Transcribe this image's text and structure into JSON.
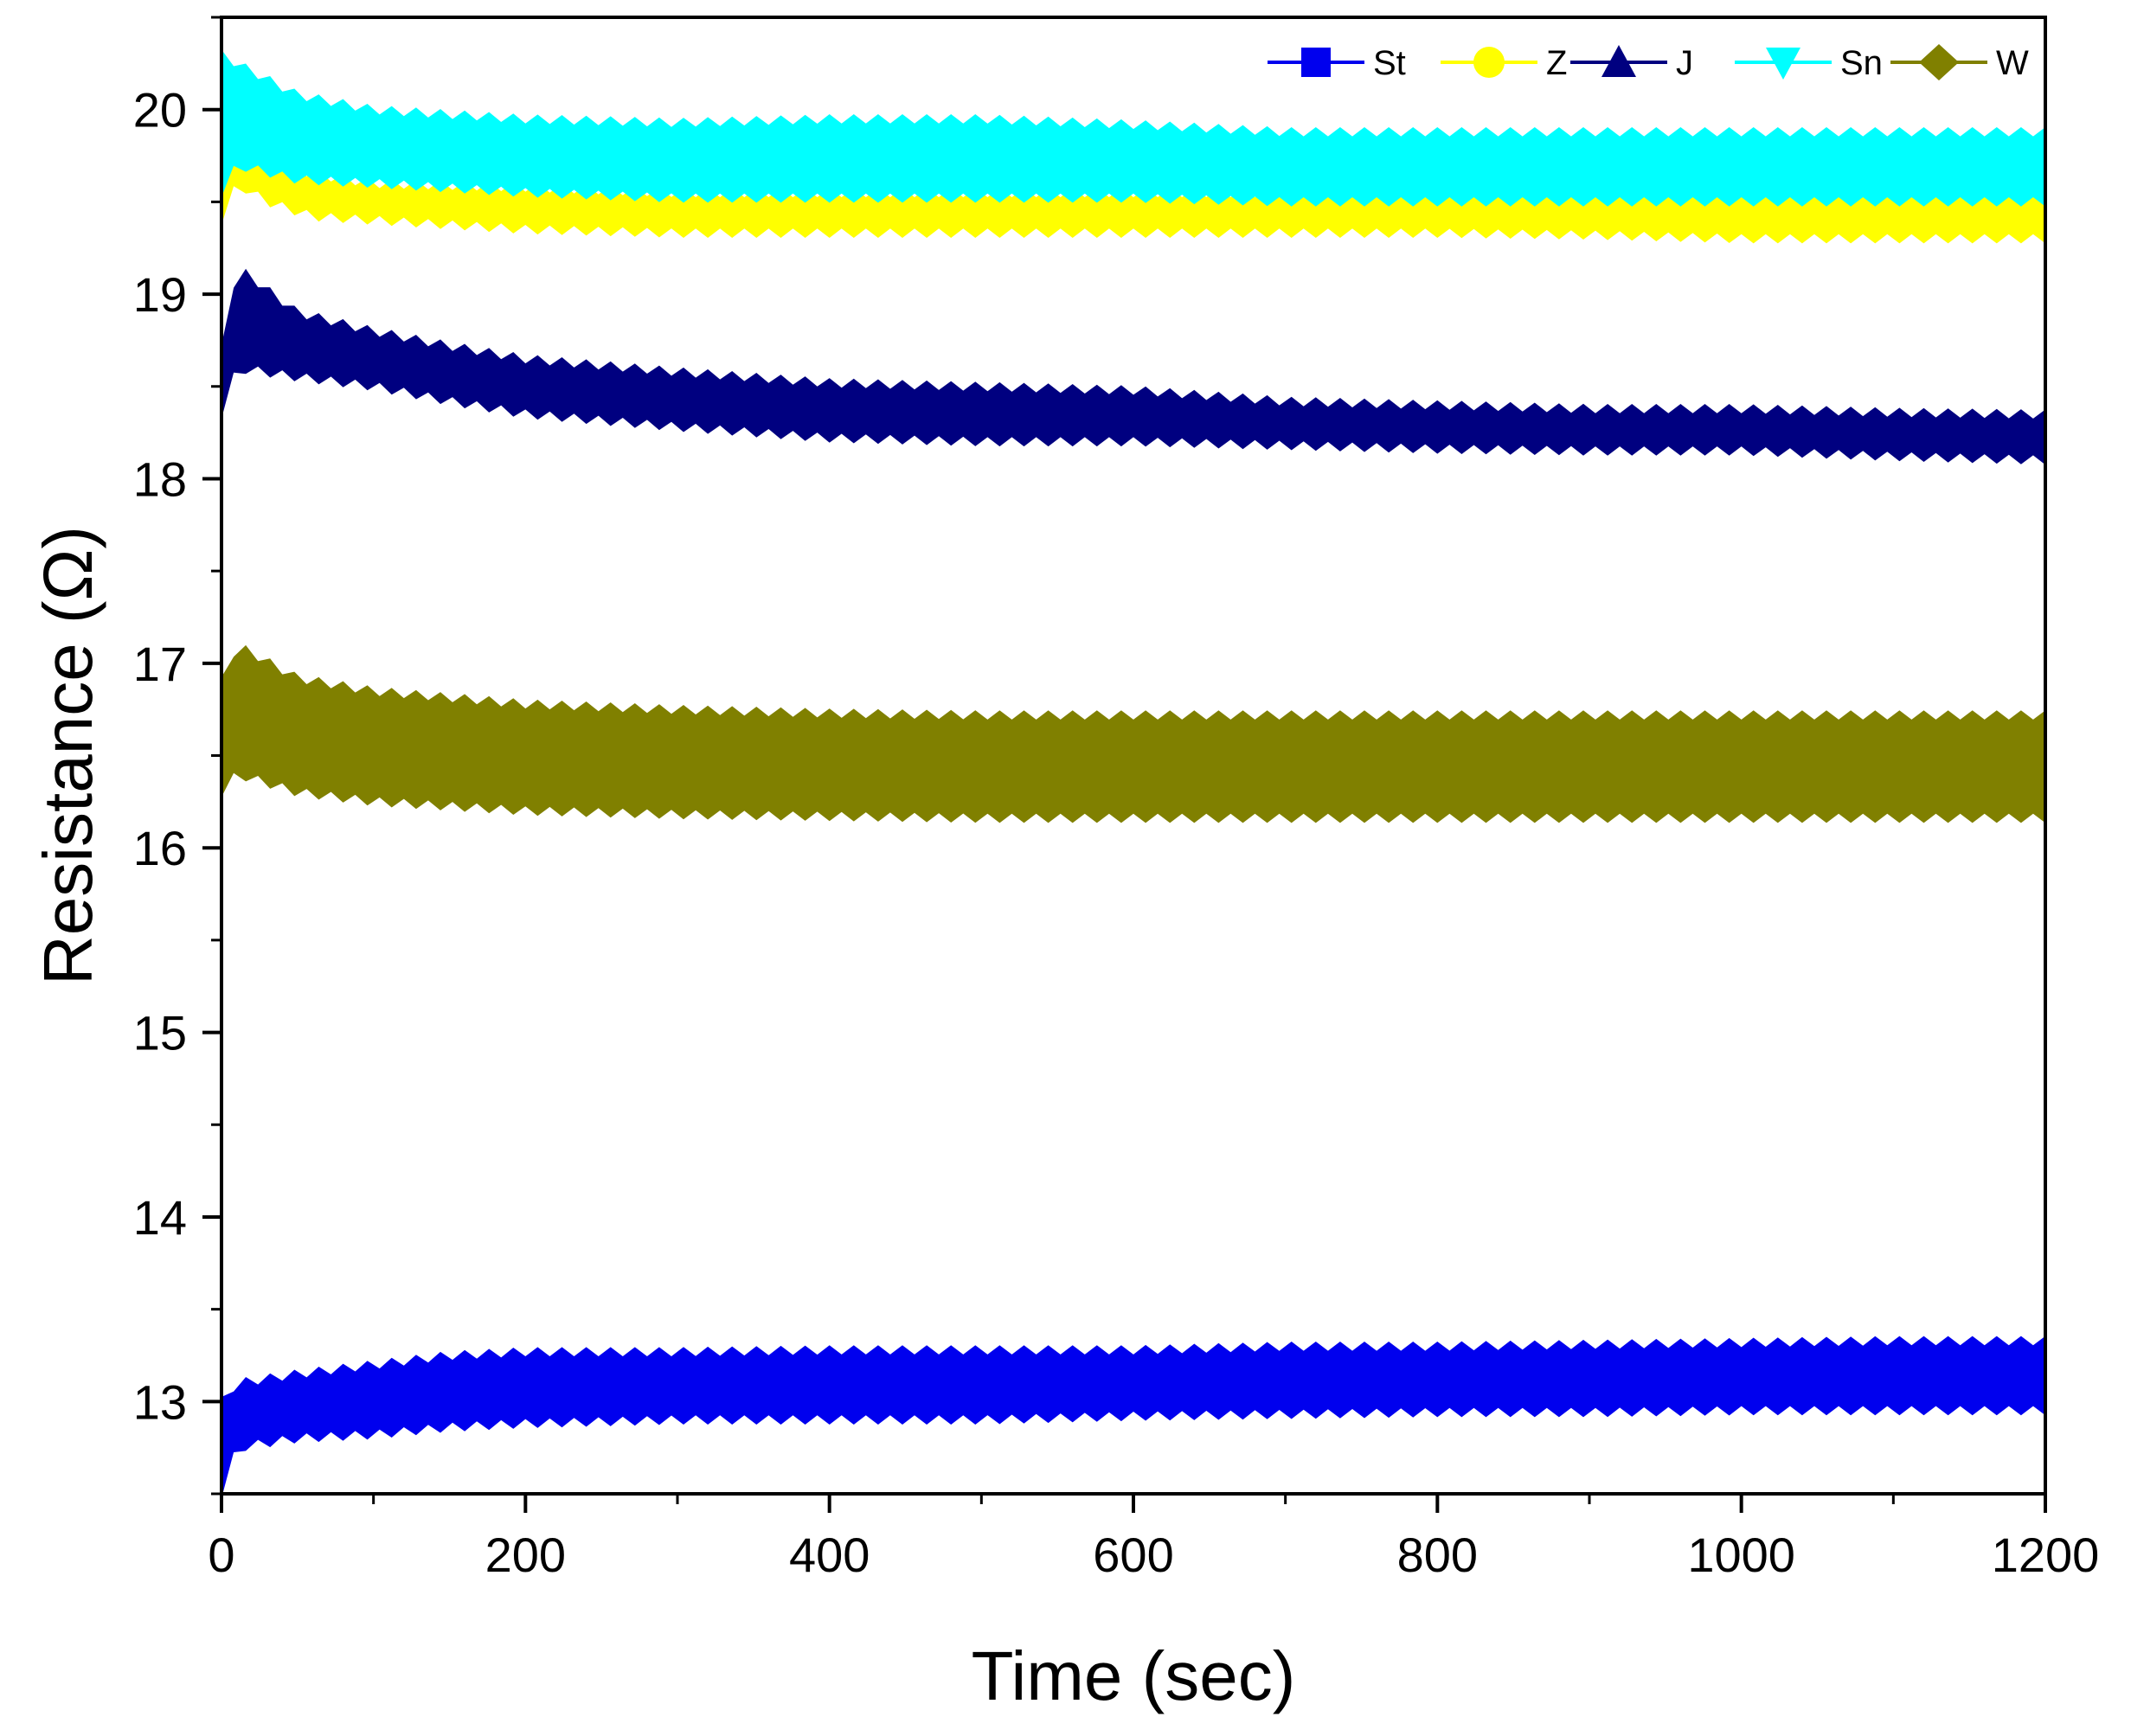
{
  "chart_data": {
    "type": "line",
    "title": "",
    "xlabel": "Time (sec)",
    "ylabel": "Resistance (Ω)",
    "xlim": [
      0,
      1200
    ],
    "ylim": [
      12.5,
      20.5
    ],
    "xticks": [
      0,
      200,
      400,
      600,
      800,
      1000,
      1200
    ],
    "yticks": [
      13,
      14,
      15,
      16,
      17,
      18,
      19,
      20
    ],
    "grid": false,
    "legend": {
      "placement": "top-right",
      "orientation": "horizontal"
    },
    "series": [
      {
        "name": "St",
        "color": "#0000ee",
        "marker": "square",
        "x": [
          0,
          10,
          50,
          100,
          150,
          200,
          300,
          400,
          500,
          600,
          700,
          800,
          900,
          1000,
          1100,
          1200
        ],
        "lower": [
          12.5,
          12.75,
          12.8,
          12.82,
          12.86,
          12.88,
          12.9,
          12.9,
          12.9,
          12.92,
          12.93,
          12.94,
          12.94,
          12.95,
          12.95,
          12.95
        ],
        "upper": [
          13.0,
          13.1,
          13.15,
          13.2,
          13.25,
          13.27,
          13.27,
          13.28,
          13.28,
          13.28,
          13.3,
          13.3,
          13.31,
          13.32,
          13.33,
          13.33
        ]
      },
      {
        "name": "Z",
        "color": "#ffff00",
        "marker": "circle",
        "x": [
          0,
          10,
          30,
          60,
          100,
          200,
          300,
          400,
          500,
          600,
          700,
          800,
          900,
          1000,
          1100,
          1200
        ],
        "lower": [
          19.4,
          19.6,
          19.5,
          19.42,
          19.4,
          19.35,
          19.33,
          19.33,
          19.33,
          19.33,
          19.33,
          19.33,
          19.32,
          19.3,
          19.3,
          19.3
        ],
        "upper": [
          20.2,
          20.0,
          19.75,
          19.65,
          19.6,
          19.58,
          19.55,
          19.55,
          19.55,
          19.55,
          19.55,
          19.55,
          19.55,
          19.55,
          19.55,
          19.55
        ]
      },
      {
        "name": "J",
        "color": "#000080",
        "marker": "triangle-up",
        "x": [
          0,
          10,
          50,
          100,
          150,
          200,
          300,
          400,
          500,
          600,
          700,
          800,
          900,
          1000,
          1100,
          1200
        ],
        "lower": [
          18.35,
          18.6,
          18.55,
          18.5,
          18.42,
          18.35,
          18.28,
          18.22,
          18.2,
          18.2,
          18.18,
          18.16,
          18.15,
          18.15,
          18.12,
          18.1
        ],
        "upper": [
          18.7,
          19.15,
          18.9,
          18.8,
          18.72,
          18.65,
          18.58,
          18.52,
          18.5,
          18.48,
          18.42,
          18.4,
          18.38,
          18.38,
          18.36,
          18.35
        ]
      },
      {
        "name": "Sn",
        "color": "#00ffff",
        "marker": "triangle-down",
        "x": [
          0,
          10,
          50,
          100,
          200,
          300,
          400,
          500,
          600,
          700,
          800,
          900,
          1000,
          1100,
          1200
        ],
        "lower": [
          19.55,
          19.7,
          19.62,
          19.6,
          19.55,
          19.52,
          19.52,
          19.52,
          19.52,
          19.5,
          19.5,
          19.5,
          19.5,
          19.5,
          19.5
        ],
        "upper": [
          20.3,
          20.25,
          20.08,
          20.0,
          19.95,
          19.93,
          19.95,
          19.95,
          19.92,
          19.88,
          19.88,
          19.88,
          19.88,
          19.88,
          19.88
        ]
      },
      {
        "name": "W",
        "color": "#808000",
        "marker": "diamond",
        "x": [
          0,
          10,
          50,
          100,
          200,
          300,
          400,
          500,
          600,
          700,
          800,
          900,
          1000,
          1100,
          1200
        ],
        "lower": [
          16.3,
          16.4,
          16.3,
          16.25,
          16.2,
          16.18,
          16.17,
          16.16,
          16.16,
          16.16,
          16.16,
          16.16,
          16.16,
          16.16,
          16.16
        ],
        "upper": [
          16.9,
          17.1,
          16.92,
          16.85,
          16.78,
          16.75,
          16.73,
          16.72,
          16.72,
          16.72,
          16.72,
          16.72,
          16.72,
          16.72,
          16.72
        ]
      }
    ]
  }
}
